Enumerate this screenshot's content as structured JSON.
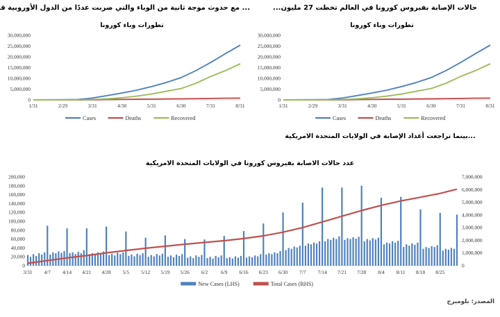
{
  "document": {
    "left_panel_title": "... مع حدوث موجة ثانية من الوباء والتي ضربت عددًا من الدول الأوروبية قرب نهاية الشهر ...",
    "right_panel_title": "حالات الإصابة بفيروس كورونا في العالم تخطت 27 مليون...",
    "us_caption": "...بينما تراجعت أعداد الإصابة في الولايات المتحدة الامريكية",
    "source_note": "المصدر: بلومبرج"
  },
  "colors": {
    "cases_blue": "#4f81bd",
    "deaths_red": "#c0504d",
    "recovered_green": "#9bbb59",
    "bars_blue": "#4f81bd",
    "total_red": "#c0504d",
    "axis_gray": "#d9d9d9",
    "label_gray": "#333333"
  },
  "chart_data": [
    {
      "id": "world-left",
      "type": "line",
      "title": "تطورات وباء كورونا",
      "x_tick_labels": [
        "1/31",
        "2/29",
        "3/31",
        "4/30",
        "5/31",
        "6/30",
        "7/31",
        "8/31"
      ],
      "points_per_tick": 2,
      "ylim": [
        0,
        30000000
      ],
      "ytick_step": 5000000,
      "grid": false,
      "legend_position": "bottom",
      "series": [
        {
          "name": "Cases",
          "color_key": "cases_blue",
          "values": [
            10000,
            50000,
            86000,
            170000,
            860000,
            2000000,
            3200000,
            4500000,
            6200000,
            8100000,
            10400000,
            13600000,
            17400000,
            21500000,
            25500000
          ]
        },
        {
          "name": "Deaths",
          "color_key": "deaths_red",
          "values": [
            200,
            2900,
            3000,
            7000,
            45000,
            130000,
            230000,
            310000,
            370000,
            440000,
            510000,
            590000,
            680000,
            770000,
            850000
          ]
        },
        {
          "name": "Recovered",
          "color_key": "recovered_green",
          "values": [
            200,
            8000,
            42000,
            78000,
            180000,
            500000,
            1000000,
            1750000,
            2700000,
            4000000,
            5300000,
            7700000,
            10900000,
            13600000,
            16800000
          ]
        }
      ]
    },
    {
      "id": "world-right",
      "type": "line",
      "title": "تطورات وباء كورونا",
      "x_tick_labels": [
        "1/31",
        "2/29",
        "3/31",
        "4/30",
        "5/31",
        "6/30",
        "7/31",
        "8/31"
      ],
      "points_per_tick": 2,
      "ylim": [
        0,
        30000000
      ],
      "ytick_step": 5000000,
      "grid": false,
      "legend_position": "bottom",
      "series": [
        {
          "name": "Cases",
          "color_key": "cases_blue",
          "values": [
            10000,
            50000,
            86000,
            170000,
            860000,
            2000000,
            3200000,
            4500000,
            6200000,
            8100000,
            10400000,
            13600000,
            17400000,
            21500000,
            25500000
          ]
        },
        {
          "name": "Deaths",
          "color_key": "deaths_red",
          "values": [
            200,
            2900,
            3000,
            7000,
            45000,
            130000,
            230000,
            310000,
            370000,
            440000,
            510000,
            590000,
            680000,
            770000,
            850000
          ]
        },
        {
          "name": "Recovered",
          "color_key": "recovered_green",
          "values": [
            200,
            8000,
            42000,
            78000,
            180000,
            500000,
            1000000,
            1750000,
            2700000,
            4000000,
            5300000,
            7700000,
            10900000,
            13600000,
            16800000
          ]
        }
      ]
    },
    {
      "id": "us-combo",
      "type": "bar",
      "title": "عدد حالات الاصابة بفيروس كورونا في الولايات المتحدة الامريكية",
      "x_tick_labels": [
        "3/31",
        "4/7",
        "4/14",
        "4/21",
        "4/28",
        "5/5",
        "5/12",
        "5/19",
        "5/26",
        "6/2",
        "6/9",
        "6/16",
        "6/23",
        "6/30",
        "7/7",
        "7/14",
        "7/21",
        "7/28",
        "8/4",
        "8/11",
        "8/18",
        "8/25"
      ],
      "days_per_tick": 7,
      "ylim_left": [
        0,
        200000
      ],
      "ytick_step_left": 20000,
      "ylim_right": [
        0,
        7000000
      ],
      "ytick_step_right": 1000000,
      "grid": false,
      "legend_position": "bottom",
      "bars": {
        "name": "New Cases (LHS)",
        "color_key": "bars_blue",
        "values": [
          24000,
          20000,
          26000,
          22000,
          28000,
          25000,
          30000,
          90000,
          25000,
          30000,
          28000,
          32000,
          29000,
          33000,
          84000,
          28000,
          30000,
          26000,
          31000,
          28000,
          35000,
          84000,
          26000,
          28000,
          25000,
          30000,
          27000,
          32000,
          88000,
          24000,
          27000,
          23000,
          29000,
          26000,
          30000,
          77000,
          22000,
          25000,
          21000,
          27000,
          24000,
          28000,
          63000,
          20000,
          24000,
          21000,
          26000,
          23000,
          27000,
          68000,
          20000,
          23000,
          19000,
          25000,
          22000,
          26000,
          60000,
          18000,
          21000,
          17000,
          23000,
          20000,
          24000,
          59000,
          17000,
          20000,
          16000,
          22000,
          19000,
          23000,
          67000,
          17000,
          19000,
          16000,
          21000,
          18000,
          22000,
          78000,
          18000,
          21000,
          19000,
          23000,
          21000,
          26000,
          95000,
          25000,
          28000,
          26000,
          30000,
          28000,
          33000,
          120000,
          35000,
          40000,
          38000,
          43000,
          41000,
          45000,
          142000,
          45000,
          50000,
          48000,
          52000,
          50000,
          55000,
          176000,
          55000,
          60000,
          58000,
          63000,
          60000,
          66000,
          176000,
          58000,
          62000,
          60000,
          64000,
          61000,
          65000,
          180000,
          55000,
          60000,
          57000,
          62000,
          59000,
          63000,
          153000,
          48000,
          52000,
          50000,
          55000,
          52000,
          56000,
          155000,
          42000,
          48000,
          45000,
          50000,
          47000,
          52000,
          127000,
          38000,
          42000,
          40000,
          44000,
          42000,
          46000,
          119000,
          34000,
          38000,
          36000,
          40000,
          38000,
          115000
        ]
      },
      "line": {
        "name": "Total Cases (RHS)",
        "color_key": "total_red",
        "day_index": [
          0,
          7,
          14,
          21,
          28,
          35,
          42,
          49,
          56,
          63,
          70,
          77,
          84,
          91,
          98,
          105,
          112,
          119,
          126,
          133,
          140,
          147,
          153
        ],
        "values": [
          190000,
          400000,
          610000,
          800000,
          1010000,
          1200000,
          1370000,
          1530000,
          1690000,
          1830000,
          1970000,
          2140000,
          2350000,
          2640000,
          3000000,
          3450000,
          3900000,
          4350000,
          4750000,
          5100000,
          5400000,
          5700000,
          6030000
        ]
      }
    }
  ]
}
